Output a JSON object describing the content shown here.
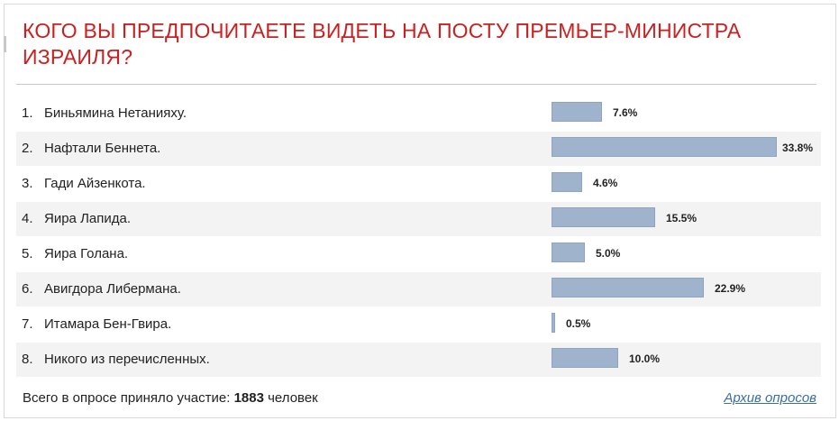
{
  "poll": {
    "title": "КОГО ВЫ ПРЕДПОЧИТАЕТЕ ВИДЕТЬ НА ПОСТУ ПРЕМЬЕР-МИНИСТРА ИЗРАИЛЯ?",
    "options": [
      {
        "num": "1.",
        "label": "Биньямина Нетанияху.",
        "percent": 7.6,
        "percent_text": "7.6%"
      },
      {
        "num": "2.",
        "label": "Нафтали Беннета.",
        "percent": 33.8,
        "percent_text": "33.8%"
      },
      {
        "num": "3.",
        "label": "Гади Айзенкота.",
        "percent": 4.6,
        "percent_text": "4.6%"
      },
      {
        "num": "4.",
        "label": "Яира Лапида.",
        "percent": 15.5,
        "percent_text": "15.5%"
      },
      {
        "num": "5.",
        "label": "Яира Голана.",
        "percent": 5.0,
        "percent_text": "5.0%"
      },
      {
        "num": "6.",
        "label": "Авигдора Либермана.",
        "percent": 22.9,
        "percent_text": "22.9%"
      },
      {
        "num": "7.",
        "label": "Итамара Бен-Гвира.",
        "percent": 0.5,
        "percent_text": "0.5%"
      },
      {
        "num": "8.",
        "label": "Никого из перечисленных.",
        "percent": 10.0,
        "percent_text": "10.0%"
      }
    ],
    "total_prefix": "Всего в опросе приняло участие:",
    "total_count": "1883",
    "total_suffix": "человек",
    "archive_link": "Архив опросов"
  },
  "colors": {
    "title": "#cc1f1f",
    "bar": "#9fb3cc",
    "link": "#3a6fa8"
  }
}
